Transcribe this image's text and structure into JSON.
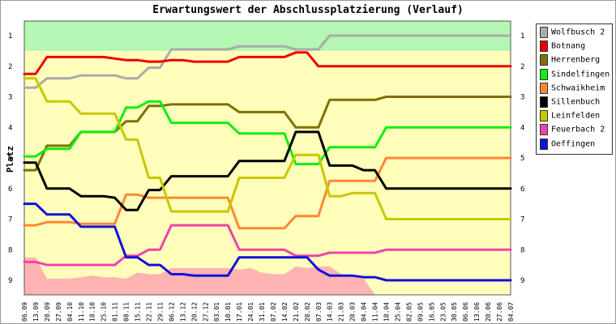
{
  "chart_data": {
    "type": "line",
    "title": "Erwartungswert der Abschlussplatzierung (Verlauf)",
    "ylabel": "Platz",
    "xlabel": "",
    "ylim": [
      1,
      9
    ],
    "y_inverted": true,
    "y_ticks": [
      "1",
      "2",
      "3",
      "4",
      "5",
      "6",
      "7",
      "8",
      "9"
    ],
    "x": [
      "06.09",
      "13.09",
      "20.09",
      "27.09",
      "04.10",
      "11.10",
      "18.10",
      "25.10",
      "01.11",
      "08.11",
      "15.11",
      "22.11",
      "29.11",
      "06.12",
      "13.12",
      "20.12",
      "27.12",
      "03.01",
      "10.01",
      "17.01",
      "24.01",
      "31.01",
      "07.02",
      "14.02",
      "21.02",
      "28.02",
      "07.03",
      "14.03",
      "21.03",
      "28.03",
      "04.04",
      "11.04",
      "18.04",
      "25.04",
      "02.05",
      "09.05",
      "16.05",
      "23.05",
      "30.05",
      "06.06",
      "13.06",
      "20.06",
      "27.06",
      "04.07"
    ],
    "x_tick_labels": [
      "06.09",
      "13.09",
      "20.09",
      "27.09",
      "04.10",
      "11.10",
      "18.10",
      "25.10",
      "01.11",
      "08.11",
      "15.11",
      "22.11",
      "29.11",
      "06.12",
      "13.12",
      "20.12",
      "27.12",
      "03.01",
      "10.01",
      "17.01",
      "24.01",
      "31.01",
      "07.02",
      "14.02",
      "21.02",
      "28.02",
      "07.03",
      "14.03",
      "21.03",
      "28.03",
      "04.04",
      "11.04",
      "18.04",
      "25.04",
      "02.05",
      "09.05",
      "16.05",
      "23.05",
      "30.05",
      "06.06",
      "13.06",
      "20.06",
      "27.06",
      "04.07"
    ],
    "bands": [
      {
        "from": 0.5,
        "to": 1.5,
        "color": "#b3f7b3"
      },
      {
        "from": 1.5,
        "to": 9.5,
        "color": "#ffffbb"
      }
    ],
    "area": {
      "color": "#ffb3b3",
      "values": [
        8.25,
        8.25,
        8.95,
        8.95,
        8.95,
        8.9,
        8.85,
        8.9,
        8.9,
        8.95,
        8.75,
        8.8,
        8.8,
        8.6,
        8.6,
        8.6,
        8.6,
        8.6,
        8.6,
        8.65,
        8.6,
        8.75,
        8.8,
        8.8,
        8.55,
        8.6,
        8.55,
        8.55,
        8.8,
        8.85,
        8.95,
        9.5,
        9.5,
        9.5,
        9.5,
        9.5,
        9.5,
        9.5,
        9.5,
        9.5,
        9.5,
        9.5,
        9.5,
        9.5
      ]
    },
    "series": [
      {
        "name": "Wolfbusch 2",
        "color": "#aaaaaa",
        "values": [
          2.7,
          2.7,
          2.4,
          2.4,
          2.4,
          2.3,
          2.3,
          2.3,
          2.3,
          2.4,
          2.4,
          2.05,
          2.05,
          1.45,
          1.45,
          1.45,
          1.45,
          1.45,
          1.45,
          1.35,
          1.35,
          1.35,
          1.35,
          1.35,
          1.45,
          1.45,
          1.45,
          1.0,
          1.0,
          1.0,
          1.0,
          1.0,
          1.0,
          1.0,
          1.0,
          1.0,
          1.0,
          1.0,
          1.0,
          1.0,
          1.0,
          1.0,
          1.0,
          1.0
        ]
      },
      {
        "name": "Botnang",
        "color": "#ee0000",
        "values": [
          2.25,
          2.25,
          1.7,
          1.7,
          1.7,
          1.7,
          1.7,
          1.7,
          1.75,
          1.8,
          1.8,
          1.85,
          1.85,
          1.8,
          1.8,
          1.85,
          1.85,
          1.85,
          1.85,
          1.7,
          1.7,
          1.7,
          1.7,
          1.7,
          1.55,
          1.55,
          2.0,
          2.0,
          2.0,
          2.0,
          2.0,
          2.0,
          2.0,
          2.0,
          2.0,
          2.0,
          2.0,
          2.0,
          2.0,
          2.0,
          2.0,
          2.0,
          2.0,
          2.0
        ]
      },
      {
        "name": "Herrenberg",
        "color": "#807000",
        "values": [
          5.4,
          5.4,
          4.6,
          4.6,
          4.6,
          4.15,
          4.15,
          4.15,
          4.15,
          3.8,
          3.8,
          3.3,
          3.3,
          3.25,
          3.25,
          3.25,
          3.25,
          3.25,
          3.25,
          3.5,
          3.5,
          3.5,
          3.5,
          3.5,
          4.0,
          4.0,
          4.0,
          3.1,
          3.1,
          3.1,
          3.1,
          3.1,
          3.0,
          3.0,
          3.0,
          3.0,
          3.0,
          3.0,
          3.0,
          3.0,
          3.0,
          3.0,
          3.0,
          3.0
        ]
      },
      {
        "name": "Sindelfingen",
        "color": "#11ee11",
        "values": [
          4.95,
          4.95,
          4.7,
          4.7,
          4.7,
          4.15,
          4.15,
          4.15,
          4.15,
          3.35,
          3.35,
          3.15,
          3.15,
          3.85,
          3.85,
          3.85,
          3.85,
          3.85,
          3.85,
          4.2,
          4.2,
          4.2,
          4.2,
          4.2,
          5.2,
          5.2,
          5.2,
          4.65,
          4.65,
          4.65,
          4.65,
          4.65,
          4.0,
          4.0,
          4.0,
          4.0,
          4.0,
          4.0,
          4.0,
          4.0,
          4.0,
          4.0,
          4.0,
          4.0
        ]
      },
      {
        "name": "Schwaikheim",
        "color": "#ff8833",
        "values": [
          7.2,
          7.2,
          7.1,
          7.1,
          7.1,
          7.15,
          7.15,
          7.15,
          7.15,
          6.2,
          6.2,
          6.3,
          6.3,
          6.3,
          6.3,
          6.3,
          6.3,
          6.3,
          6.3,
          7.3,
          7.3,
          7.3,
          7.3,
          7.3,
          6.9,
          6.9,
          6.9,
          5.75,
          5.75,
          5.75,
          5.75,
          5.75,
          5.0,
          5.0,
          5.0,
          5.0,
          5.0,
          5.0,
          5.0,
          5.0,
          5.0,
          5.0,
          5.0,
          5.0
        ]
      },
      {
        "name": "Sillenbuch",
        "color": "#000000",
        "values": [
          5.15,
          5.15,
          6.0,
          6.0,
          6.0,
          6.25,
          6.25,
          6.25,
          6.3,
          6.7,
          6.7,
          6.05,
          6.05,
          5.6,
          5.6,
          5.6,
          5.6,
          5.6,
          5.6,
          5.1,
          5.1,
          5.1,
          5.1,
          5.1,
          4.15,
          4.15,
          4.15,
          5.25,
          5.25,
          5.25,
          5.4,
          5.4,
          6.0,
          6.0,
          6.0,
          6.0,
          6.0,
          6.0,
          6.0,
          6.0,
          6.0,
          6.0,
          6.0,
          6.0
        ]
      },
      {
        "name": "Leinfelden",
        "color": "#c8c800",
        "values": [
          2.4,
          2.4,
          3.15,
          3.15,
          3.15,
          3.55,
          3.55,
          3.55,
          3.55,
          4.4,
          4.4,
          5.65,
          5.65,
          6.75,
          6.75,
          6.75,
          6.75,
          6.75,
          6.75,
          5.65,
          5.65,
          5.65,
          5.65,
          5.65,
          4.9,
          4.9,
          4.9,
          6.25,
          6.25,
          6.15,
          6.15,
          6.15,
          7.0,
          7.0,
          7.0,
          7.0,
          7.0,
          7.0,
          7.0,
          7.0,
          7.0,
          7.0,
          7.0,
          7.0
        ]
      },
      {
        "name": "Feuerbach 2",
        "color": "#ee44aa",
        "values": [
          8.4,
          8.4,
          8.5,
          8.5,
          8.5,
          8.5,
          8.5,
          8.5,
          8.5,
          8.2,
          8.2,
          8.0,
          8.0,
          7.2,
          7.2,
          7.2,
          7.2,
          7.2,
          7.2,
          8.0,
          8.0,
          8.0,
          8.0,
          8.0,
          8.2,
          8.2,
          8.2,
          8.1,
          8.1,
          8.1,
          8.1,
          8.1,
          8.0,
          8.0,
          8.0,
          8.0,
          8.0,
          8.0,
          8.0,
          8.0,
          8.0,
          8.0,
          8.0,
          8.0
        ]
      },
      {
        "name": "Oeffingen",
        "color": "#1111dd",
        "values": [
          6.5,
          6.5,
          6.85,
          6.85,
          6.85,
          7.25,
          7.25,
          7.25,
          7.25,
          8.25,
          8.25,
          8.5,
          8.5,
          8.8,
          8.8,
          8.85,
          8.85,
          8.85,
          8.85,
          8.25,
          8.25,
          8.25,
          8.25,
          8.25,
          8.25,
          8.25,
          8.65,
          8.85,
          8.85,
          8.85,
          8.9,
          8.9,
          9.0,
          9.0,
          9.0,
          9.0,
          9.0,
          9.0,
          9.0,
          9.0,
          9.0,
          9.0,
          9.0,
          9.0
        ]
      }
    ],
    "legend_position": "right",
    "grid": false
  }
}
